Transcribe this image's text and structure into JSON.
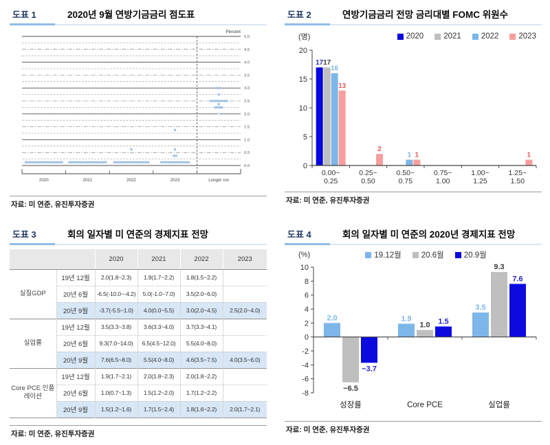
{
  "panels": {
    "p1": {
      "label": "도표 1",
      "title": "2020년 9월 연방기금금리 점도표",
      "source": "자료: 미 연준, 유진투자증권"
    },
    "p2": {
      "label": "도표 2",
      "title": "연방기금금리 전망 금리대별 FOMC 위원수",
      "source": "자료: 미 연준, 유진투자증권"
    },
    "p3": {
      "label": "도표 3",
      "title": "회의 일자별 미 연준의 경제지표 전망",
      "source": "자료: 미 연준, 유진투자증권"
    },
    "p4": {
      "label": "도표 4",
      "title": "회의 일자별 미 연준의 2020년 경제지표 전망",
      "source": "자료: 미 연준, 유진투자증권"
    }
  },
  "chart_data": [
    {
      "type": "scatter",
      "name": "fed-dot-plot",
      "title": "2020년 9월 연방기금금리 점도표",
      "ylabel": "Percent",
      "ylim": [
        0.0,
        5.0
      ],
      "grid_step": 0.25,
      "ytick_step": 0.5,
      "categories": [
        "2020",
        "2021",
        "2022",
        "2023",
        "Longer run"
      ],
      "dot_color": "#A9C9E8",
      "dots": [
        {
          "category": "2020",
          "rate": 0.125,
          "count": 17
        },
        {
          "category": "2021",
          "rate": 0.125,
          "count": 17
        },
        {
          "category": "2022",
          "rate": 0.125,
          "count": 16
        },
        {
          "category": "2022",
          "rate": 0.625,
          "count": 1
        },
        {
          "category": "2023",
          "rate": 0.125,
          "count": 13
        },
        {
          "category": "2023",
          "rate": 0.375,
          "count": 2
        },
        {
          "category": "2023",
          "rate": 0.625,
          "count": 1
        },
        {
          "category": "2023",
          "rate": 1.375,
          "count": 1
        },
        {
          "category": "Longer run",
          "rate": 2.0,
          "count": 1,
          "hollow": true
        },
        {
          "category": "Longer run",
          "rate": 2.25,
          "count": 4
        },
        {
          "category": "Longer run",
          "rate": 2.375,
          "count": 1
        },
        {
          "category": "Longer run",
          "rate": 2.5,
          "count": 8
        },
        {
          "category": "Longer run",
          "rate": 2.75,
          "count": 1
        },
        {
          "category": "Longer run",
          "rate": 3.0,
          "count": 2
        }
      ]
    },
    {
      "type": "bar",
      "name": "fomc-members-by-rate-range",
      "title": "연방기금금리 전망 금리대별 FOMC 위원수",
      "unit_label": "(명)",
      "ylim": [
        0,
        20
      ],
      "yticks": [
        0,
        5,
        10,
        15,
        20
      ],
      "categories": [
        [
          "0.00~",
          "0.25"
        ],
        [
          "0.25~",
          "0.50"
        ],
        [
          "0.50~",
          "0.75"
        ],
        [
          "0.75~",
          "1.00"
        ],
        [
          "1.00~",
          "1.25"
        ],
        [
          "1.25~",
          "1.50"
        ]
      ],
      "series": [
        {
          "name": "2020",
          "color": "#0808DF",
          "label_color": "#2B2BB8",
          "values": [
            17,
            0,
            0,
            0,
            0,
            0
          ]
        },
        {
          "name": "2021",
          "color": "#BFBFBF",
          "label_color": "#3A3A3A",
          "values": [
            17,
            0,
            0,
            0,
            0,
            0
          ]
        },
        {
          "name": "2022",
          "color": "#7DB6E9",
          "label_color": "#7DB6E9",
          "values": [
            16,
            0,
            1,
            0,
            0,
            0
          ]
        },
        {
          "name": "2023",
          "color": "#F89E9E",
          "label_color": "#E05A5A",
          "values": [
            13,
            2,
            1,
            0,
            0,
            1
          ]
        }
      ]
    },
    {
      "type": "table",
      "name": "fed-economic-projections",
      "title": "회의 일자별 미 연준의 경제지표 전망",
      "col_years": [
        "2020",
        "2021",
        "2022",
        "2023"
      ],
      "highlight_color": "#D7E7F6",
      "groups": [
        {
          "category": "실질GDP",
          "rows": [
            {
              "date": "19년 12월",
              "values": [
                "2.0(1.8~2.3)",
                "1.9(1.7~2.2)",
                "1.8(1.5~2.2)",
                ""
              ]
            },
            {
              "date": "20년 6월",
              "values": [
                "-6.5(-10.0~-4.2)",
                "5.0(-1.0~7.0)",
                "3.5(2.0~6.0)",
                ""
              ]
            },
            {
              "date": "20년 9월",
              "highlight": true,
              "values": [
                "-3.7(-5.5~1.0)",
                "4.0(0.0~5.5)",
                "3.0(2.0~4.5)",
                "2.5(2.0~4.0)"
              ]
            }
          ]
        },
        {
          "category": "실업률",
          "rows": [
            {
              "date": "19년 12월",
              "values": [
                "3.5(3.3~3.8)",
                "3.6(3.3~4.0)",
                "3.7(3.3~4.1)",
                ""
              ]
            },
            {
              "date": "20년 6월",
              "values": [
                "9.3(7.0~14.0)",
                "6.5(4.5~12.0)",
                "5.5(4.0~8.0)",
                ""
              ]
            },
            {
              "date": "20년 9월",
              "highlight": true,
              "values": [
                "7.6(6.5~8.0)",
                "5.5(4.0~8.0)",
                "4.6(3.5~7.5)",
                "4.0(3.5~6.0)"
              ]
            }
          ]
        },
        {
          "category": "Core PCE 인플레이션",
          "rows": [
            {
              "date": "19년 12월",
              "values": [
                "1.9(1.7~2.1)",
                "2.0(1.8~2.3)",
                "2.0(1.8~2.2)",
                ""
              ]
            },
            {
              "date": "20년 6월",
              "values": [
                "1.0(0.7~1.3)",
                "1.5(1.2~2.0)",
                "1.7(1.2~2.2)",
                ""
              ]
            },
            {
              "date": "20년 9월",
              "highlight": true,
              "values": [
                "1.5(1.2~1.6)",
                "1.7(1.5~2.4)",
                "1.8(1.6~2.2)",
                "2.0(1.7~2.1)"
              ]
            }
          ]
        }
      ]
    },
    {
      "type": "bar",
      "name": "fed-2020-forecast-by-meeting",
      "title": "회의 일자별 미 연준의 2020년 경제지표 전망",
      "unit_label": "(%)",
      "ylim": [
        -8,
        10
      ],
      "yticks": [
        10,
        8,
        6,
        4,
        2,
        0,
        -2,
        -4,
        -6,
        -8
      ],
      "categories": [
        "성장률",
        "Core PCE",
        "실업률"
      ],
      "label_decimals": 1,
      "series": [
        {
          "name": "19.12월",
          "color": "#7DB6E9",
          "label_color": "#7DB6E9",
          "values": [
            2.0,
            1.9,
            3.5
          ]
        },
        {
          "name": "20.6월",
          "color": "#BFBFBF",
          "label_color": "#3A3A3A",
          "values": [
            -6.5,
            1.0,
            9.3
          ]
        },
        {
          "name": "20.9월",
          "color": "#0B0BE0",
          "label_color": "#2424C8",
          "values": [
            -3.7,
            1.5,
            7.6
          ]
        }
      ]
    }
  ]
}
